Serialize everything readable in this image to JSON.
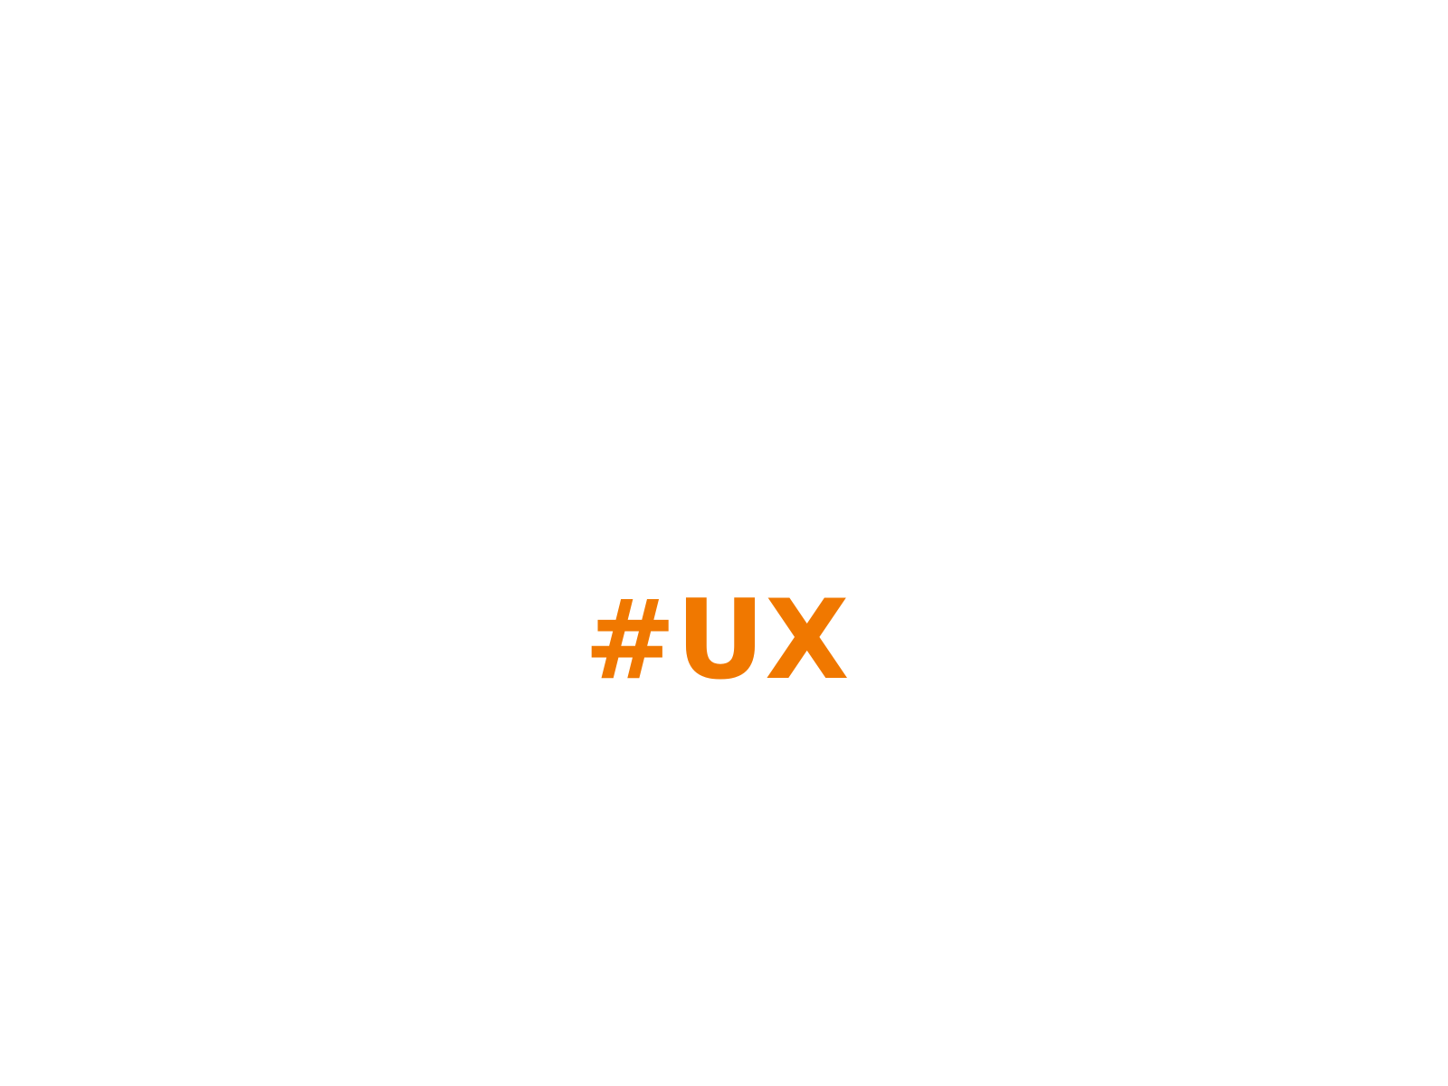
{
  "hashtag": {
    "text": "#UX",
    "color": "#f07800"
  },
  "background_color": "#ffffff"
}
